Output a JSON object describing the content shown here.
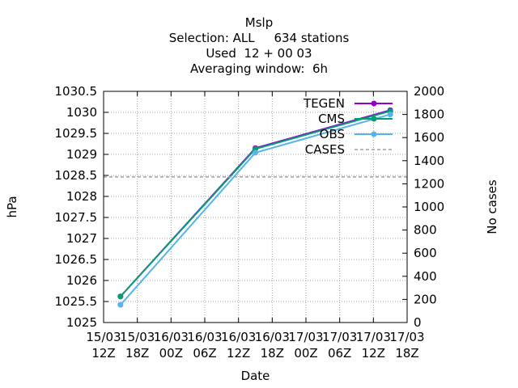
{
  "chart_data": {
    "type": "line",
    "title_lines": [
      "Mslp",
      "Selection: ALL     634 stations",
      "Used  12 + 00 03",
      "Averaging window:  6h"
    ],
    "xlabel": "Date",
    "ylabel": "hPa",
    "y2label": "No cases",
    "x_ticks": [
      "15/03 12Z",
      "15/03 18Z",
      "16/03 00Z",
      "16/03 06Z",
      "16/03 12Z",
      "16/03 18Z",
      "17/03 00Z",
      "17/03 06Z",
      "17/03 12Z",
      "17/03 18Z"
    ],
    "xlim": [
      "15/03 12Z",
      "17/03 18Z"
    ],
    "ylim": [
      1025,
      1030.5
    ],
    "y_ticks": [
      1025,
      1025.5,
      1026,
      1026.5,
      1027,
      1027.5,
      1028,
      1028.5,
      1029,
      1029.5,
      1030,
      1030.5
    ],
    "y_tick_labels": [
      "1025",
      "1025.5",
      "1026",
      "1026.5",
      "1027",
      "1027.5",
      "1028",
      "1028.5",
      "1029",
      "1029.5",
      "1030",
      "1030.5"
    ],
    "y2lim": [
      0,
      2000
    ],
    "y2_ticks": [
      0,
      200,
      400,
      600,
      800,
      1000,
      1200,
      1400,
      1600,
      1800,
      2000
    ],
    "y2_tick_labels": [
      "0",
      "200",
      "400",
      "600",
      "800",
      "1000",
      "1200",
      "1400",
      "1600",
      "1800",
      "2000"
    ],
    "grid": true,
    "legend_position": "top-right",
    "x": [
      "15/03 15Z",
      "16/03 15Z",
      "17/03 15Z"
    ],
    "series": [
      {
        "name": "TEGEN",
        "axis": "y",
        "color": "#9400d3",
        "style": "solid",
        "values": [
          1025.62,
          1029.15,
          1030.05
        ]
      },
      {
        "name": "CMS",
        "axis": "y",
        "color": "#009e73",
        "style": "solid",
        "values": [
          1025.62,
          1029.13,
          1030.03
        ]
      },
      {
        "name": "OBS",
        "axis": "y",
        "color": "#56b4e9",
        "style": "solid",
        "values": [
          1025.42,
          1029.04,
          1029.95
        ]
      },
      {
        "name": "CASES",
        "axis": "y2",
        "color": "#a0a0a0",
        "style": "dashed",
        "values": [
          1260,
          1260,
          1260
        ]
      }
    ]
  }
}
